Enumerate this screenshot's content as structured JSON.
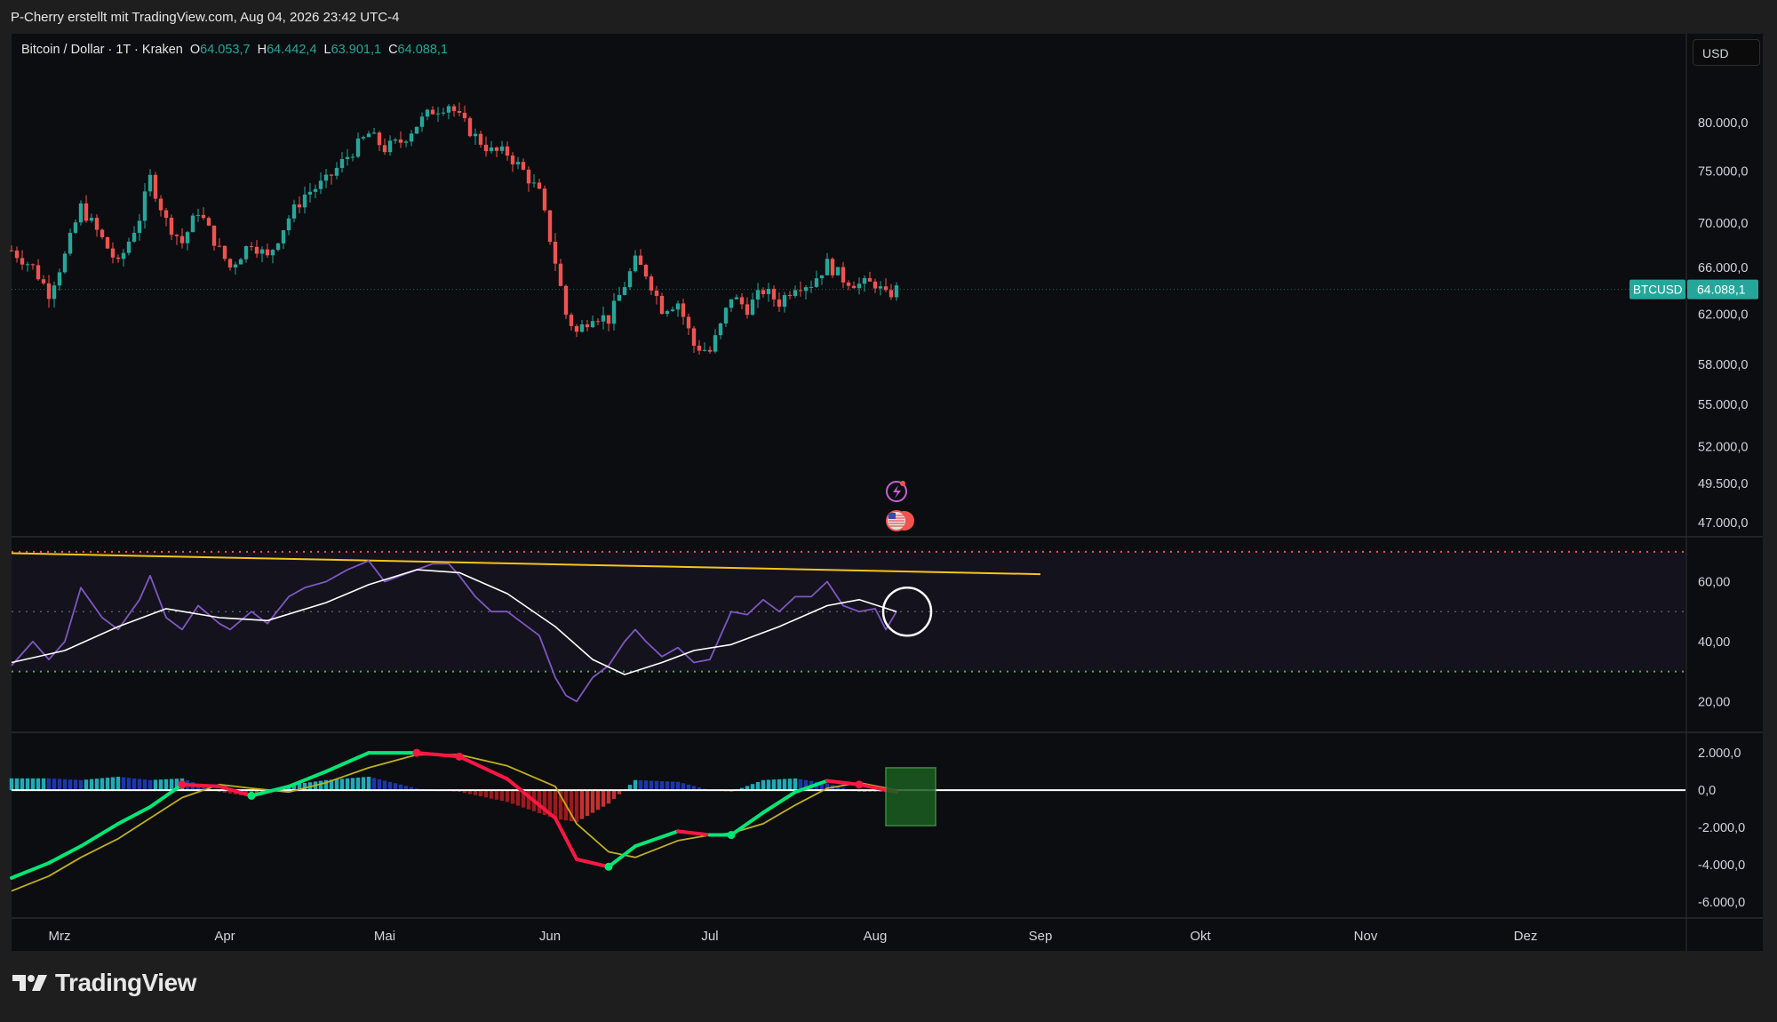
{
  "header": {
    "attribution": "P-Cherry erstellt mit TradingView.com, Aug 04, 2026 23:42 UTC-4"
  },
  "legend": {
    "symbol": "Bitcoin / Dollar · 1T · Kraken",
    "open_label": "O",
    "open": "64.053,7",
    "high_label": "H",
    "high": "64.442,4",
    "low_label": "L",
    "low": "63.901,1",
    "close_label": "C",
    "close": "64.088,1"
  },
  "currency_button": "USD",
  "price_tag": {
    "symbol": "BTCUSD",
    "value": "64.088,1"
  },
  "footer": {
    "logo_text": "TradingView"
  },
  "colors": {
    "up": "#26a69a",
    "down": "#ef5350",
    "rsi": "#7e57c2",
    "rsi_ma": "#ffffff",
    "trend": "#f5c518",
    "ob": "#ef5350",
    "os": "#4caf50",
    "macd_up": "#00e676",
    "macd_down": "#ff1744",
    "signal": "#c0b020"
  },
  "chart_data": [
    {
      "type": "candlestick",
      "pane": "price",
      "title": "Bitcoin / Dollar · 1T · Kraken",
      "y_ticks": [
        "80.000,0",
        "75.000,0",
        "70.000,0",
        "66.000,0",
        "62.000,0",
        "58.000,0",
        "55.000,0",
        "52.000,0",
        "49.500,0",
        "47.000,0"
      ],
      "y_tick_values": [
        80000,
        75000,
        70000,
        66000,
        62000,
        58000,
        55000,
        52000,
        49500,
        47000
      ],
      "x_ticks": [
        "Mrz",
        "Apr",
        "Mai",
        "Jun",
        "Jul",
        "Aug",
        "Sep",
        "Okt",
        "Nov",
        "Dez"
      ],
      "x_range": [
        "2026-02-20",
        "2026-12-31"
      ],
      "scale": "log",
      "last_price": 64088.1,
      "close_path": [
        [
          "2026-02-20",
          67500
        ],
        [
          "2026-02-24",
          66000
        ],
        [
          "2026-02-27",
          63800
        ],
        [
          "2026-03-02",
          67000
        ],
        [
          "2026-03-05",
          71500
        ],
        [
          "2026-03-09",
          68500
        ],
        [
          "2026-03-12",
          66200
        ],
        [
          "2026-03-16",
          70500
        ],
        [
          "2026-03-18",
          74300
        ],
        [
          "2026-03-21",
          70200
        ],
        [
          "2026-03-24",
          68200
        ],
        [
          "2026-03-27",
          71200
        ],
        [
          "2026-03-31",
          67500
        ],
        [
          "2026-04-02",
          66000
        ],
        [
          "2026-04-06",
          68300
        ],
        [
          "2026-04-09",
          66800
        ],
        [
          "2026-04-13",
          70500
        ],
        [
          "2026-04-16",
          72700
        ],
        [
          "2026-04-20",
          74000
        ],
        [
          "2026-04-24",
          76500
        ],
        [
          "2026-04-28",
          78800
        ],
        [
          "2026-05-01",
          77300
        ],
        [
          "2026-05-04",
          78000
        ],
        [
          "2026-05-07",
          79800
        ],
        [
          "2026-05-10",
          81300
        ],
        [
          "2026-05-13",
          82000
        ],
        [
          "2026-05-15",
          80500
        ],
        [
          "2026-05-18",
          78500
        ],
        [
          "2026-05-21",
          77000
        ],
        [
          "2026-05-24",
          76800
        ],
        [
          "2026-05-27",
          75000
        ],
        [
          "2026-05-30",
          72800
        ],
        [
          "2026-06-02",
          66500
        ],
        [
          "2026-06-04",
          62000
        ],
        [
          "2026-06-06",
          60500
        ],
        [
          "2026-06-09",
          62000
        ],
        [
          "2026-06-12",
          61600
        ],
        [
          "2026-06-15",
          64500
        ],
        [
          "2026-06-17",
          66500
        ],
        [
          "2026-06-19",
          65500
        ],
        [
          "2026-06-22",
          62500
        ],
        [
          "2026-06-25",
          63000
        ],
        [
          "2026-06-28",
          59500
        ],
        [
          "2026-07-01",
          59000
        ],
        [
          "2026-07-03",
          61000
        ],
        [
          "2026-07-05",
          63500
        ],
        [
          "2026-07-08",
          62500
        ],
        [
          "2026-07-11",
          64000
        ],
        [
          "2026-07-14",
          63000
        ],
        [
          "2026-07-17",
          64500
        ],
        [
          "2026-07-20",
          64600
        ],
        [
          "2026-07-23",
          66300
        ],
        [
          "2026-07-26",
          65000
        ],
        [
          "2026-07-29",
          64500
        ],
        [
          "2026-08-01",
          64600
        ],
        [
          "2026-08-03",
          63500
        ],
        [
          "2026-08-05",
          64088
        ]
      ]
    },
    {
      "type": "line",
      "pane": "rsi",
      "y_ticks": [
        "60,00",
        "40,00",
        "20,00"
      ],
      "y_tick_values": [
        60,
        40,
        20
      ],
      "y_range": [
        10,
        75
      ],
      "levels": {
        "upper": 70,
        "middle": 50,
        "lower": 30
      },
      "trendline": {
        "x": [
          "2026-02-20",
          "2026-09-01"
        ],
        "y": [
          69.5,
          62.5
        ]
      },
      "series": [
        {
          "id": "rsi",
          "values": [
            [
              "2026-02-20",
              32
            ],
            [
              "2026-02-24",
              40
            ],
            [
              "2026-02-27",
              34
            ],
            [
              "2026-03-02",
              40
            ],
            [
              "2026-03-05",
              58
            ],
            [
              "2026-03-09",
              48
            ],
            [
              "2026-03-12",
              44
            ],
            [
              "2026-03-16",
              54
            ],
            [
              "2026-03-18",
              62
            ],
            [
              "2026-03-21",
              48
            ],
            [
              "2026-03-24",
              44
            ],
            [
              "2026-03-27",
              52
            ],
            [
              "2026-03-31",
              46
            ],
            [
              "2026-04-02",
              44
            ],
            [
              "2026-04-06",
              50
            ],
            [
              "2026-04-09",
              46
            ],
            [
              "2026-04-13",
              55
            ],
            [
              "2026-04-16",
              58
            ],
            [
              "2026-04-20",
              60
            ],
            [
              "2026-04-24",
              64
            ],
            [
              "2026-04-28",
              67
            ],
            [
              "2026-05-01",
              60
            ],
            [
              "2026-05-04",
              62
            ],
            [
              "2026-05-07",
              64
            ],
            [
              "2026-05-10",
              66
            ],
            [
              "2026-05-13",
              66
            ],
            [
              "2026-05-15",
              62
            ],
            [
              "2026-05-18",
              55
            ],
            [
              "2026-05-21",
              50
            ],
            [
              "2026-05-24",
              50
            ],
            [
              "2026-05-27",
              46
            ],
            [
              "2026-05-30",
              42
            ],
            [
              "2026-06-02",
              28
            ],
            [
              "2026-06-04",
              22
            ],
            [
              "2026-06-06",
              20
            ],
            [
              "2026-06-09",
              28
            ],
            [
              "2026-06-12",
              32
            ],
            [
              "2026-06-15",
              40
            ],
            [
              "2026-06-17",
              44
            ],
            [
              "2026-06-19",
              40
            ],
            [
              "2026-06-22",
              35
            ],
            [
              "2026-06-25",
              38
            ],
            [
              "2026-06-28",
              33
            ],
            [
              "2026-07-01",
              34
            ],
            [
              "2026-07-03",
              42
            ],
            [
              "2026-07-05",
              50
            ],
            [
              "2026-07-08",
              49
            ],
            [
              "2026-07-11",
              54
            ],
            [
              "2026-07-14",
              50
            ],
            [
              "2026-07-17",
              55
            ],
            [
              "2026-07-20",
              55
            ],
            [
              "2026-07-23",
              60
            ],
            [
              "2026-07-26",
              52
            ],
            [
              "2026-07-29",
              50
            ],
            [
              "2026-08-01",
              51
            ],
            [
              "2026-08-03",
              44
            ],
            [
              "2026-08-05",
              50
            ]
          ]
        },
        {
          "id": "rsi_ma",
          "values": [
            [
              "2026-02-20",
              33
            ],
            [
              "2026-03-02",
              37
            ],
            [
              "2026-03-12",
              45
            ],
            [
              "2026-03-21",
              51
            ],
            [
              "2026-03-31",
              48
            ],
            [
              "2026-04-09",
              47
            ],
            [
              "2026-04-20",
              53
            ],
            [
              "2026-04-28",
              59
            ],
            [
              "2026-05-07",
              64
            ],
            [
              "2026-05-15",
              63
            ],
            [
              "2026-05-24",
              56
            ],
            [
              "2026-06-02",
              45
            ],
            [
              "2026-06-09",
              34
            ],
            [
              "2026-06-15",
              29
            ],
            [
              "2026-06-22",
              33
            ],
            [
              "2026-06-28",
              37
            ],
            [
              "2026-07-05",
              39
            ],
            [
              "2026-07-14",
              45
            ],
            [
              "2026-07-23",
              52
            ],
            [
              "2026-07-29",
              54
            ],
            [
              "2026-08-05",
              50
            ]
          ]
        }
      ]
    },
    {
      "type": "line",
      "pane": "macd",
      "y_ticks": [
        "2.000,0",
        "0,0",
        "-2.000,0",
        "-4.000,0",
        "-6.000,0"
      ],
      "y_tick_values": [
        2000,
        0,
        -2000,
        -4000,
        -6000
      ],
      "y_range": [
        -6800,
        3100
      ],
      "series": [
        {
          "id": "macd",
          "values": [
            [
              "2026-02-20",
              -4700
            ],
            [
              "2026-02-27",
              -3900
            ],
            [
              "2026-03-05",
              -3000
            ],
            [
              "2026-03-12",
              -1800
            ],
            [
              "2026-03-18",
              -900
            ],
            [
              "2026-03-24",
              300
            ],
            [
              "2026-03-31",
              200
            ],
            [
              "2026-04-06",
              -300
            ],
            [
              "2026-04-13",
              200
            ],
            [
              "2026-04-20",
              1000
            ],
            [
              "2026-04-28",
              2000
            ],
            [
              "2026-05-07",
              2000
            ],
            [
              "2026-05-15",
              1800
            ],
            [
              "2026-05-24",
              600
            ],
            [
              "2026-06-02",
              -1500
            ],
            [
              "2026-06-06",
              -3700
            ],
            [
              "2026-06-12",
              -4100
            ],
            [
              "2026-06-17",
              -3000
            ],
            [
              "2026-06-25",
              -2200
            ],
            [
              "2026-07-01",
              -2400
            ],
            [
              "2026-07-05",
              -2400
            ],
            [
              "2026-07-11",
              -1200
            ],
            [
              "2026-07-17",
              -100
            ],
            [
              "2026-07-23",
              500
            ],
            [
              "2026-07-29",
              300
            ],
            [
              "2026-08-05",
              -100
            ]
          ]
        },
        {
          "id": "signal",
          "values": [
            [
              "2026-02-20",
              -5400
            ],
            [
              "2026-02-27",
              -4600
            ],
            [
              "2026-03-05",
              -3600
            ],
            [
              "2026-03-12",
              -2600
            ],
            [
              "2026-03-18",
              -1500
            ],
            [
              "2026-03-24",
              -400
            ],
            [
              "2026-03-31",
              300
            ],
            [
              "2026-04-06",
              100
            ],
            [
              "2026-04-13",
              -100
            ],
            [
              "2026-04-20",
              400
            ],
            [
              "2026-04-28",
              1200
            ],
            [
              "2026-05-07",
              1900
            ],
            [
              "2026-05-15",
              1900
            ],
            [
              "2026-05-24",
              1300
            ],
            [
              "2026-06-02",
              200
            ],
            [
              "2026-06-06",
              -1800
            ],
            [
              "2026-06-12",
              -3300
            ],
            [
              "2026-06-17",
              -3600
            ],
            [
              "2026-06-25",
              -2700
            ],
            [
              "2026-07-01",
              -2400
            ],
            [
              "2026-07-05",
              -2300
            ],
            [
              "2026-07-11",
              -1800
            ],
            [
              "2026-07-17",
              -800
            ],
            [
              "2026-07-23",
              100
            ],
            [
              "2026-07-29",
              400
            ],
            [
              "2026-08-05",
              0
            ]
          ]
        }
      ]
    }
  ]
}
